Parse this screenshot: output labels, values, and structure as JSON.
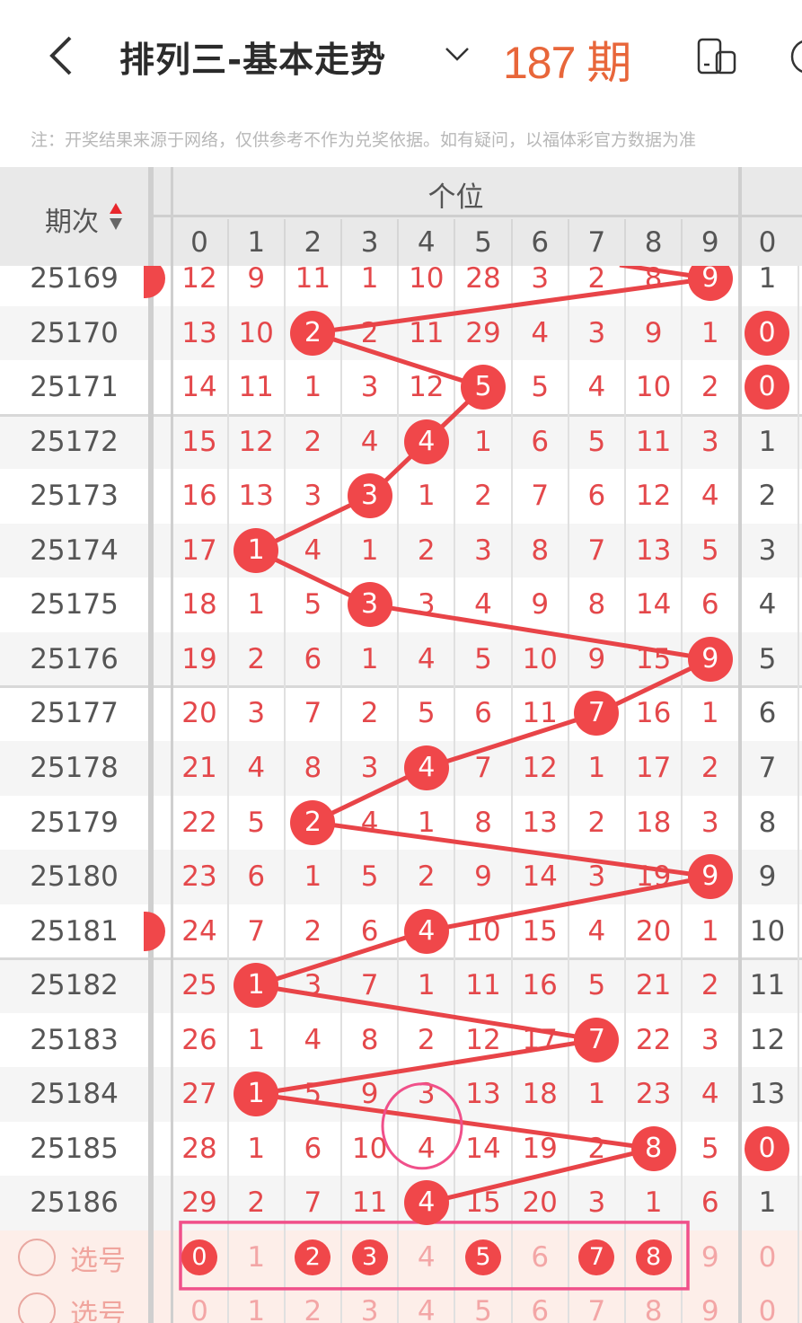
{
  "header": {
    "title": "排列三-基本走势",
    "back_icon": "chevron-left-icon",
    "dropdown_icon": "chevron-down-icon",
    "device_icon": "phone-device-icon"
  },
  "note": "注：开奖结果来源于网络，仅供参考不作为兑奖依据。如有疑问，以福体彩官方数据为准",
  "table": {
    "issue_header": "期次",
    "group_header": "个位",
    "digits": [
      "0",
      "1",
      "2",
      "3",
      "4",
      "5",
      "6",
      "7",
      "8",
      "9"
    ],
    "extra_digit": "0",
    "rows": [
      {
        "issue": "25169",
        "cells": [
          12,
          9,
          11,
          1,
          10,
          28,
          3,
          2,
          8,
          9
        ],
        "hit": 9,
        "extra": "1",
        "extra_hit": false
      },
      {
        "issue": "25170",
        "cells": [
          13,
          10,
          2,
          2,
          11,
          29,
          4,
          3,
          9,
          1
        ],
        "hit": 2,
        "extra": "0",
        "extra_hit": true
      },
      {
        "issue": "25171",
        "cells": [
          14,
          11,
          1,
          3,
          12,
          5,
          5,
          4,
          10,
          2
        ],
        "hit": 5,
        "extra": "0",
        "extra_hit": true
      },
      {
        "issue": "25172",
        "cells": [
          15,
          12,
          2,
          4,
          4,
          1,
          6,
          5,
          11,
          3
        ],
        "hit": 4,
        "extra": "1",
        "extra_hit": false
      },
      {
        "issue": "25173",
        "cells": [
          16,
          13,
          3,
          3,
          1,
          2,
          7,
          6,
          12,
          4
        ],
        "hit": 3,
        "extra": "2",
        "extra_hit": false
      },
      {
        "issue": "25174",
        "cells": [
          17,
          1,
          4,
          1,
          2,
          3,
          8,
          7,
          13,
          5
        ],
        "hit": 1,
        "extra": "3",
        "extra_hit": false
      },
      {
        "issue": "25175",
        "cells": [
          18,
          1,
          5,
          3,
          3,
          4,
          9,
          8,
          14,
          6
        ],
        "hit": 3,
        "extra": "4",
        "extra_hit": false
      },
      {
        "issue": "25176",
        "cells": [
          19,
          2,
          6,
          1,
          4,
          5,
          10,
          9,
          15,
          9
        ],
        "hit": 9,
        "extra": "5",
        "extra_hit": false
      },
      {
        "issue": "25177",
        "cells": [
          20,
          3,
          7,
          2,
          5,
          6,
          11,
          7,
          16,
          1
        ],
        "hit": 7,
        "extra": "6",
        "extra_hit": false
      },
      {
        "issue": "25178",
        "cells": [
          21,
          4,
          8,
          3,
          4,
          7,
          12,
          1,
          17,
          2
        ],
        "hit": 4,
        "extra": "7",
        "extra_hit": false
      },
      {
        "issue": "25179",
        "cells": [
          22,
          5,
          2,
          4,
          1,
          8,
          13,
          2,
          18,
          3
        ],
        "hit": 2,
        "extra": "8",
        "extra_hit": false
      },
      {
        "issue": "25180",
        "cells": [
          23,
          6,
          1,
          5,
          2,
          9,
          14,
          3,
          19,
          9
        ],
        "hit": 9,
        "extra": "9",
        "extra_hit": false
      },
      {
        "issue": "25181",
        "cells": [
          24,
          7,
          2,
          6,
          4,
          10,
          15,
          4,
          20,
          1
        ],
        "hit": 4,
        "extra": "10",
        "extra_hit": false
      },
      {
        "issue": "25182",
        "cells": [
          25,
          1,
          3,
          7,
          1,
          11,
          16,
          5,
          21,
          2
        ],
        "hit": 1,
        "extra": "11",
        "extra_hit": false
      },
      {
        "issue": "25183",
        "cells": [
          26,
          1,
          4,
          8,
          2,
          12,
          17,
          7,
          22,
          3
        ],
        "hit": 7,
        "extra": "12",
        "extra_hit": false
      },
      {
        "issue": "25184",
        "cells": [
          27,
          1,
          5,
          9,
          3,
          13,
          18,
          1,
          23,
          4
        ],
        "hit": 1,
        "extra": "13",
        "extra_hit": false
      },
      {
        "issue": "25185",
        "cells": [
          28,
          1,
          6,
          10,
          4,
          14,
          19,
          2,
          8,
          5
        ],
        "hit": 8,
        "extra": "0",
        "extra_hit": true
      },
      {
        "issue": "25186",
        "cells": [
          29,
          2,
          7,
          11,
          4,
          15,
          20,
          3,
          1,
          6
        ],
        "hit": 4,
        "extra": "1",
        "extra_hit": false
      }
    ],
    "select_rows": [
      {
        "label": "选号",
        "selected": [
          0,
          2,
          3,
          5,
          7,
          8
        ]
      },
      {
        "label": "选号",
        "selected": []
      }
    ]
  },
  "overlay_label": "187 期",
  "colors": {
    "ball": "#f0474a",
    "line": "#e84448",
    "annotation": "#f0508a",
    "overlay_text": "#e8663a",
    "select_bg": "#fdeee9"
  }
}
